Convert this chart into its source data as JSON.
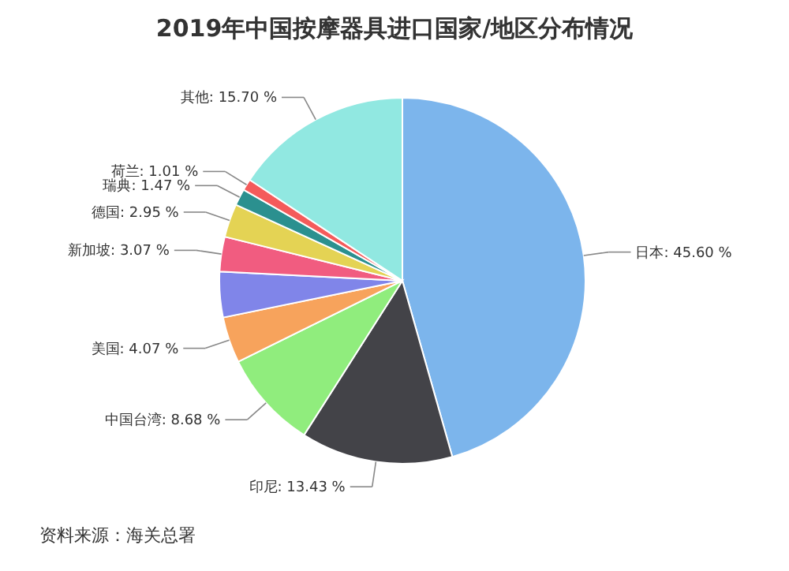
{
  "chart_data": {
    "type": "pie",
    "title": "2019年中国按摩器具进口国家/地区分布情况",
    "categories": [
      "日本",
      "印尼",
      "中国台湾",
      "美国",
      null,
      "新加坡",
      "德国",
      "瑞典",
      "荷兰",
      "其他"
    ],
    "values": [
      45.6,
      13.43,
      8.68,
      4.07,
      4.02,
      3.07,
      2.95,
      1.47,
      1.01,
      15.7
    ],
    "value_labels": [
      "45.60 %",
      "13.43 %",
      "8.68 %",
      "4.07 %",
      null,
      "3.07 %",
      "2.95 %",
      "1.47 %",
      "1.01 %",
      "15.70 %"
    ],
    "colors": [
      "#7cb5ec",
      "#434348",
      "#90ed7d",
      "#f7a35c",
      "#8085e9",
      "#f15c80",
      "#e4d354",
      "#2b908f",
      "#f45b5b",
      "#91e8e1"
    ],
    "annotations": [
      "资料来源：海关总署"
    ]
  }
}
